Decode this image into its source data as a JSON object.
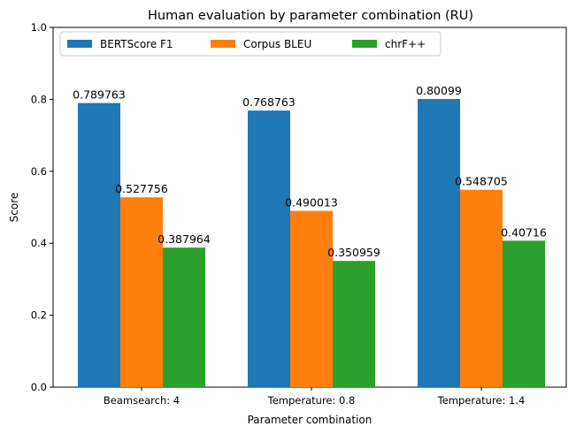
{
  "chart_data": {
    "type": "bar",
    "title": "Human evaluation by parameter combination (RU)",
    "xlabel": "Parameter combination",
    "ylabel": "Score",
    "ylim": [
      0,
      1.0
    ],
    "yticks": [
      "0.0",
      "0.2",
      "0.4",
      "0.6",
      "0.8",
      "1.0"
    ],
    "categories": [
      "Beamsearch: 4",
      "Temperature: 0.8",
      "Temperature: 1.4"
    ],
    "series": [
      {
        "name": "BERTScore F1",
        "color": "#1f77b4",
        "values": [
          0.789763,
          0.768763,
          0.80099
        ],
        "labels": [
          "0.789763",
          "0.768763",
          "0.80099"
        ]
      },
      {
        "name": "Corpus BLEU",
        "color": "#ff7f0e",
        "values": [
          0.527756,
          0.490013,
          0.548705
        ],
        "labels": [
          "0.527756",
          "0.490013",
          "0.548705"
        ]
      },
      {
        "name": "chrF++",
        "color": "#2ca02c",
        "values": [
          0.387964,
          0.350959,
          0.40716
        ],
        "labels": [
          "0.387964",
          "0.350959",
          "0.40716"
        ]
      }
    ],
    "legend": {
      "position": "top-left",
      "columns": 3
    },
    "grid": false
  }
}
